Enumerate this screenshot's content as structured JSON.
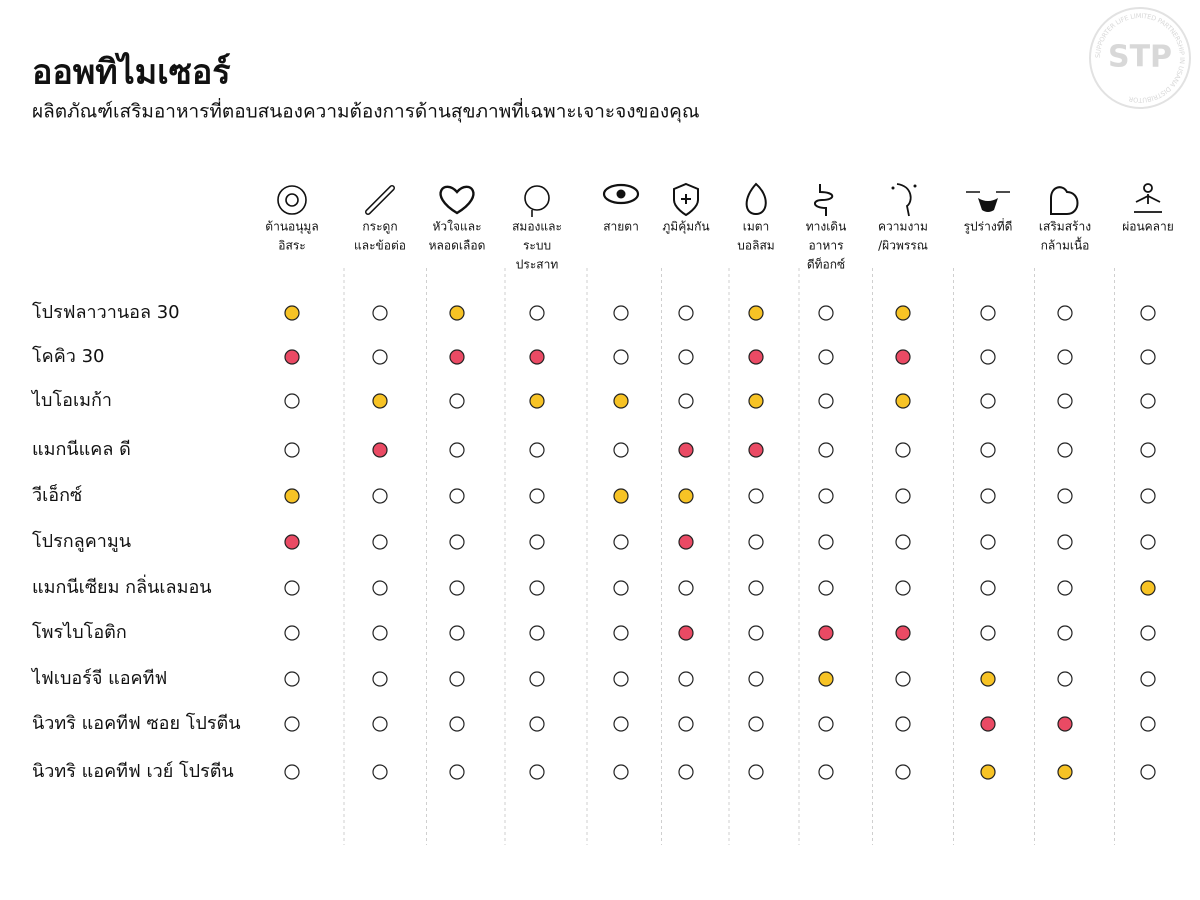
{
  "header": {
    "title": "ออพทิไมเซอร์",
    "subtitle": "ผลิตภัณฑ์เสริมอาหารที่ตอบสนองความต้องการด้านสุขภาพที่เฉพาะเจาะจงของคุณ"
  },
  "watermark": {
    "logo": "STP",
    "ring": "SUPPORTER LIFE LIMITED PARTNERSHIP IN USANA DISTRIBUTOR"
  },
  "columns": [
    {
      "lines": [
        "ต้านอนุมูล",
        "อิสระ"
      ]
    },
    {
      "lines": [
        "กระดูก",
        "และข้อต่อ"
      ]
    },
    {
      "lines": [
        "หัวใจและ",
        "หลอดเลือด"
      ]
    },
    {
      "lines": [
        "สมองและ",
        "ระบบ",
        "ประสาท"
      ]
    },
    {
      "lines": [
        "สายตา"
      ]
    },
    {
      "lines": [
        "ภูมิคุ้มกัน"
      ]
    },
    {
      "lines": [
        "เมตา",
        "บอลิสม"
      ]
    },
    {
      "lines": [
        "ทางเดิน",
        "อาหาร",
        "ดีท็อกซ์"
      ]
    },
    {
      "lines": [
        "ความงาม",
        "/ผิวพรรณ"
      ]
    },
    {
      "lines": [
        "รูปร่างที่ดี"
      ]
    },
    {
      "lines": [
        "เสริมสร้าง",
        "กล้ามเนื้อ"
      ]
    },
    {
      "lines": [
        "ผ่อนคลาย"
      ]
    }
  ],
  "rows": [
    {
      "name": "โปรฟลาวานอล 30",
      "cells": [
        "#f7c325",
        "#ffffff",
        "#f7c325",
        "#ffffff",
        "#ffffff",
        "#ffffff",
        "#f7c325",
        "#ffffff",
        "#f7c325",
        "#ffffff",
        "#ffffff",
        "#ffffff"
      ]
    },
    {
      "name": "โคคิว 30",
      "cells": [
        "#ea4a64",
        "#ffffff",
        "#ea4a64",
        "#ea4a64",
        "#ffffff",
        "#ffffff",
        "#ea4a64",
        "#ffffff",
        "#ea4a64",
        "#ffffff",
        "#ffffff",
        "#ffffff"
      ]
    },
    {
      "name": "ไบโอเมก้า",
      "cells": [
        "#ffffff",
        "#f7c325",
        "#ffffff",
        "#f7c325",
        "#f7c325",
        "#ffffff",
        "#f7c325",
        "#ffffff",
        "#f7c325",
        "#ffffff",
        "#ffffff",
        "#ffffff"
      ]
    },
    {
      "name": "แมกนีแคล ดี",
      "cells": [
        "#ffffff",
        "#ea4a64",
        "#ffffff",
        "#ffffff",
        "#ffffff",
        "#ea4a64",
        "#ea4a64",
        "#ffffff",
        "#ffffff",
        "#ffffff",
        "#ffffff",
        "#ffffff"
      ]
    },
    {
      "name": "วีเอ็กซ์",
      "cells": [
        "#f7c325",
        "#ffffff",
        "#ffffff",
        "#ffffff",
        "#f7c325",
        "#f7c325",
        "#ffffff",
        "#ffffff",
        "#ffffff",
        "#ffffff",
        "#ffffff",
        "#ffffff"
      ]
    },
    {
      "name": "โปรกลูคามูน",
      "cells": [
        "#ea4a64",
        "#ffffff",
        "#ffffff",
        "#ffffff",
        "#ffffff",
        "#ea4a64",
        "#ffffff",
        "#ffffff",
        "#ffffff",
        "#ffffff",
        "#ffffff",
        "#ffffff"
      ]
    },
    {
      "name": "แมกนีเซียม กลิ่นเลมอน",
      "cells": [
        "#ffffff",
        "#ffffff",
        "#ffffff",
        "#ffffff",
        "#ffffff",
        "#ffffff",
        "#ffffff",
        "#ffffff",
        "#ffffff",
        "#ffffff",
        "#ffffff",
        "#f7c325"
      ]
    },
    {
      "name": "โพรไบโอติก",
      "cells": [
        "#ffffff",
        "#ffffff",
        "#ffffff",
        "#ffffff",
        "#ffffff",
        "#ea4a64",
        "#ffffff",
        "#ea4a64",
        "#ea4a64",
        "#ffffff",
        "#ffffff",
        "#ffffff"
      ]
    },
    {
      "name": "ไฟเบอร์จี แอคทีฟ",
      "cells": [
        "#ffffff",
        "#ffffff",
        "#ffffff",
        "#ffffff",
        "#ffffff",
        "#ffffff",
        "#ffffff",
        "#f7c325",
        "#ffffff",
        "#f7c325",
        "#ffffff",
        "#ffffff"
      ]
    },
    {
      "name": "นิวทริ แอคทีฟ ซอย โปรตีน",
      "cells": [
        "#ffffff",
        "#ffffff",
        "#ffffff",
        "#ffffff",
        "#ffffff",
        "#ffffff",
        "#ffffff",
        "#ffffff",
        "#ffffff",
        "#ea4a64",
        "#ea4a64",
        "#ffffff"
      ]
    },
    {
      "name": "นิวทริ แอคทีฟ เวย์ โปรตีน",
      "cells": [
        "#ffffff",
        "#ffffff",
        "#ffffff",
        "#ffffff",
        "#ffffff",
        "#ffffff",
        "#ffffff",
        "#ffffff",
        "#ffffff",
        "#f7c325",
        "#f7c325",
        "#ffffff"
      ]
    }
  ]
}
